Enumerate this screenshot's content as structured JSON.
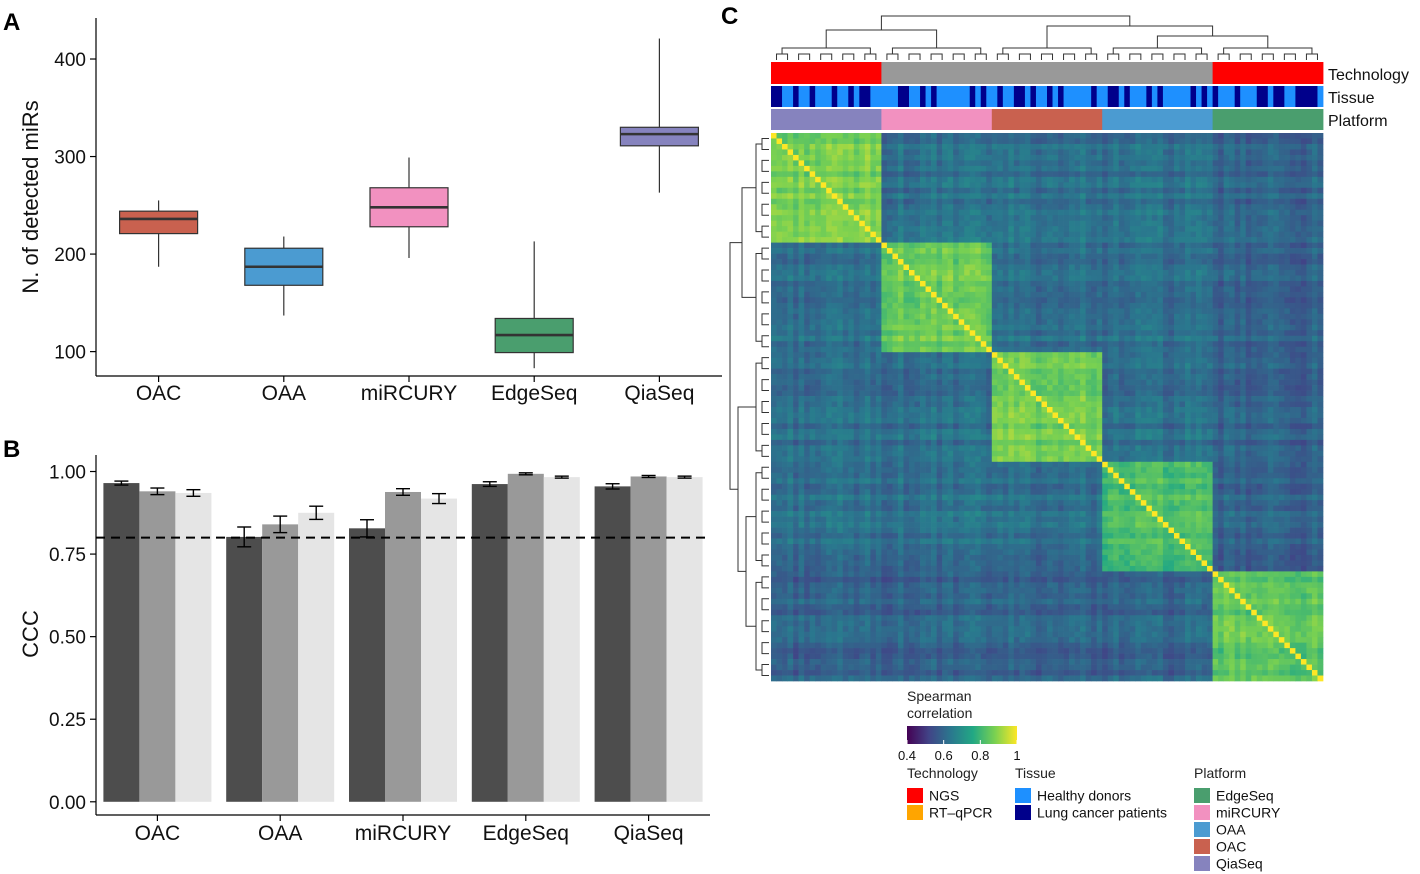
{
  "panel_labels": {
    "a": "A",
    "b": "B",
    "c": "C"
  },
  "chart_data": [
    {
      "id": "A",
      "type": "box",
      "title": "",
      "xlabel": "",
      "ylabel": "N. of detected miRs",
      "ylim": [
        75,
        440
      ],
      "yticks": [
        100,
        200,
        300,
        400
      ],
      "categories": [
        "OAC",
        "OAA",
        "miRCURY",
        "EdgeSeq",
        "QiaSeq"
      ],
      "colors": [
        "#C9614F",
        "#4B9BD1",
        "#F291C0",
        "#4A9E6E",
        "#8683BE"
      ],
      "boxes": [
        {
          "min": 187,
          "q1": 221,
          "median": 236,
          "q3": 244,
          "max": 255
        },
        {
          "min": 137,
          "q1": 168,
          "median": 187,
          "q3": 206,
          "max": 218
        },
        {
          "min": 196,
          "q1": 228,
          "median": 248,
          "q3": 268,
          "max": 299
        },
        {
          "min": 83,
          "q1": 99,
          "median": 117,
          "q3": 134,
          "max": 213
        },
        {
          "min": 263,
          "q1": 311,
          "median": 323,
          "q3": 330,
          "max": 421
        }
      ]
    },
    {
      "id": "B",
      "type": "bar",
      "title": "",
      "xlabel": "",
      "ylabel": "CCC",
      "ylim": [
        -0.04,
        1.05
      ],
      "yticks": [
        "0.00",
        "0.25",
        "0.50",
        "0.75",
        "1.00"
      ],
      "ytick_values": [
        0,
        0.25,
        0.5,
        0.75,
        1.0
      ],
      "categories": [
        "OAC",
        "OAA",
        "miRCURY",
        "EdgeSeq",
        "QiaSeq"
      ],
      "reference_line": 0.8,
      "series": [
        {
          "name": "dark",
          "color": "#4D4D4D",
          "values": [
            0.965,
            0.802,
            0.828,
            0.962,
            0.955
          ],
          "errors": [
            0.006,
            0.03,
            0.026,
            0.007,
            0.008
          ]
        },
        {
          "name": "mid",
          "color": "#999999",
          "values": [
            0.94,
            0.84,
            0.938,
            0.993,
            0.985
          ],
          "errors": [
            0.01,
            0.025,
            0.01,
            0.003,
            0.003
          ]
        },
        {
          "name": "light",
          "color": "#E5E5E5",
          "values": [
            0.935,
            0.875,
            0.918,
            0.983,
            0.983
          ],
          "errors": [
            0.01,
            0.02,
            0.015,
            0.003,
            0.003
          ]
        }
      ]
    },
    {
      "id": "C",
      "type": "heatmap",
      "title": "",
      "groups": [
        "QiaSeq",
        "miRCURY",
        "OAC",
        "OAA",
        "EdgeSeq"
      ],
      "within_group_corr": [
        0.87,
        0.86,
        0.87,
        0.82,
        0.84
      ],
      "between_group_corr": 0.62,
      "colorbar": {
        "title_line1": "Spearman",
        "title_line2": "correlation",
        "ticks": [
          "0.4",
          "0.6",
          "0.8",
          "1"
        ],
        "range": [
          0.4,
          1
        ]
      },
      "annotation_rows": [
        "Technology",
        "Tissue",
        "Platform"
      ],
      "technology_segments": [
        "NGS",
        "RT-qPCR",
        "NGS"
      ],
      "platform_segments": [
        "QiaSeq",
        "miRCURY",
        "OAC",
        "OAA",
        "EdgeSeq"
      ]
    }
  ],
  "legends": {
    "technology": {
      "title": "Technology",
      "items": [
        {
          "label": "NGS",
          "color": "#FF0000"
        },
        {
          "label": "RT–qPCR",
          "color": "#FFA500"
        }
      ]
    },
    "tissue": {
      "title": "Tissue",
      "items": [
        {
          "label": "Healthy donors",
          "color": "#1E90FF"
        },
        {
          "label": "Lung cancer patients",
          "color": "#00008B"
        }
      ]
    },
    "platform": {
      "title": "Platform",
      "items": [
        {
          "label": "EdgeSeq",
          "color": "#4A9E6E"
        },
        {
          "label": "miRCURY",
          "color": "#F291C0"
        },
        {
          "label": "OAA",
          "color": "#4B9BD1"
        },
        {
          "label": "OAC",
          "color": "#C9614F"
        },
        {
          "label": "QiaSeq",
          "color": "#8683BE"
        }
      ]
    }
  }
}
